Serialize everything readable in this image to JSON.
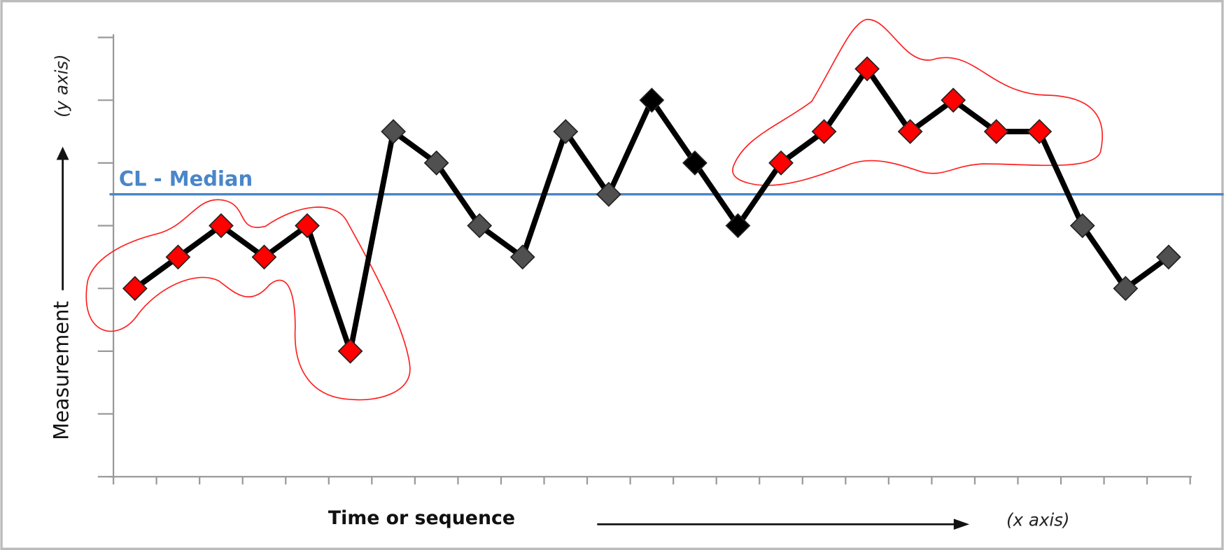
{
  "chart_data": {
    "type": "line",
    "x_label": "Time or sequence",
    "x_note": "(x axis)",
    "y_label": "Measurement",
    "y_note": "(y axis)",
    "x": [
      1,
      2,
      3,
      4,
      5,
      6,
      7,
      8,
      9,
      10,
      11,
      12,
      13,
      14,
      15,
      16,
      17,
      18,
      19,
      20,
      21,
      22,
      23,
      24,
      25
    ],
    "xlim": [
      0.5,
      25.5
    ],
    "xticks": [
      0.5,
      1.5,
      2.5,
      3.5,
      4.5,
      5.5,
      6.5,
      7.5,
      8.5,
      9.5,
      10.5,
      11.5,
      12.5,
      13.5,
      14.5,
      15.5,
      16.5,
      17.5,
      18.5,
      19.5,
      20.5,
      21.5,
      22.5,
      23.5,
      24.5,
      25.5
    ],
    "ylim": [
      0,
      7
    ],
    "yticks": [
      0,
      1,
      2,
      3,
      4,
      5,
      6,
      7
    ],
    "series": [
      {
        "color": "#000000",
        "values": [
          3,
          3.5,
          4,
          3.5,
          4,
          2,
          5.5,
          5,
          4,
          3.5,
          5.5,
          4.5,
          6,
          5,
          4,
          5,
          5.5,
          6.5,
          5.5,
          6,
          5.5,
          5.5,
          4,
          3,
          3.5
        ],
        "point_colors": [
          "#ff0000",
          "#ff0000",
          "#ff0000",
          "#ff0000",
          "#ff0000",
          "#ff0000",
          "#505050",
          "#505050",
          "#505050",
          "#505050",
          "#505050",
          "#505050",
          "#000000",
          "#000000",
          "#000000",
          "#ff0000",
          "#ff0000",
          "#ff0000",
          "#ff0000",
          "#ff0000",
          "#ff0000",
          "#ff0000",
          "#505050",
          "#505050",
          "#505050"
        ]
      }
    ],
    "median_line": {
      "value": 4.5,
      "label": "CL - Median",
      "color": "#4a86c8"
    }
  }
}
